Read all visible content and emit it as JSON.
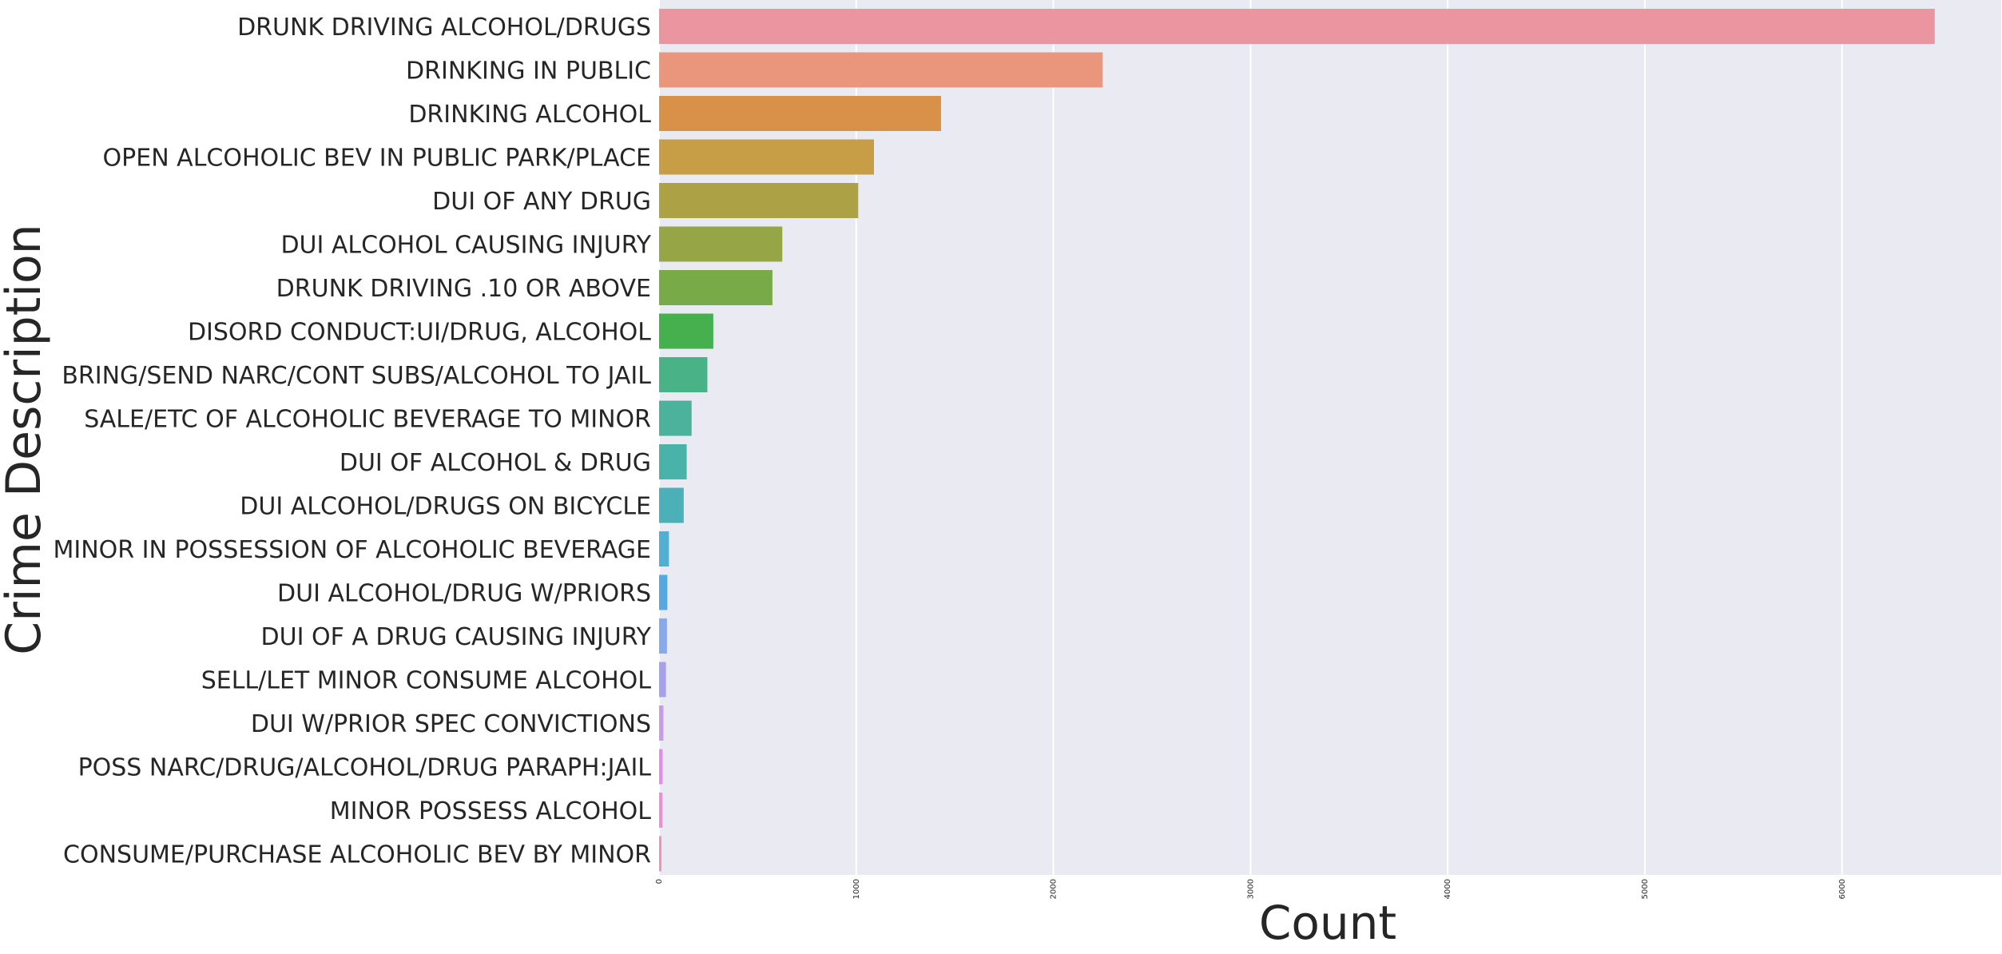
{
  "chart_data": {
    "type": "bar",
    "orientation": "horizontal",
    "categories": [
      "DRUNK DRIVING ALCOHOL/DRUGS",
      "DRINKING IN PUBLIC",
      "DRINKING ALCOHOL",
      "OPEN ALCOHOLIC BEV IN PUBLIC PARK/PLACE",
      "DUI OF ANY DRUG",
      "DUI ALCOHOL CAUSING INJURY",
      "DRUNK DRIVING .10 OR ABOVE",
      "DISORD CONDUCT:UI/DRUG, ALCOHOL",
      "BRING/SEND NARC/CONT SUBS/ALCOHOL TO JAIL",
      "SALE/ETC OF ALCOHOLIC BEVERAGE TO MINOR",
      "DUI OF ALCOHOL & DRUG",
      "DUI ALCOHOL/DRUGS ON BICYCLE",
      "MINOR IN POSSESSION OF ALCOHOLIC BEVERAGE",
      "DUI ALCOHOL/DRUG W/PRIORS",
      "DUI OF A DRUG CAUSING INJURY",
      "SELL/LET MINOR CONSUME ALCOHOL",
      "DUI W/PRIOR SPEC CONVICTIONS",
      "POSS NARC/DRUG/ALCOHOL/DRUG PARAPH:JAIL",
      "MINOR POSSESS ALCOHOL",
      "CONSUME/PURCHASE ALCOHOLIC BEV BY MINOR"
    ],
    "values": [
      6470,
      2250,
      1430,
      1090,
      1010,
      625,
      575,
      275,
      245,
      165,
      140,
      125,
      50,
      42,
      40,
      35,
      22,
      18,
      17,
      12
    ],
    "colors": [
      "#ea95a0",
      "#e9967c",
      "#d99049",
      "#c79e46",
      "#ada146",
      "#96a646",
      "#78ab47",
      "#46b04f",
      "#4ab287",
      "#4db29b",
      "#4ab3a9",
      "#4cb0b8",
      "#52afd2",
      "#56a8e1",
      "#89a8e9",
      "#a6a1e8",
      "#c89be8",
      "#e08ee7",
      "#ea8fd0",
      "#ea92bc"
    ],
    "xlabel": "Count",
    "ylabel": "Crime Description",
    "xticks": [
      0,
      1000,
      2000,
      3000,
      4000,
      5000,
      6000
    ],
    "xlim": [
      0,
      6800
    ],
    "grid": true,
    "background": "#eaeaf2"
  }
}
